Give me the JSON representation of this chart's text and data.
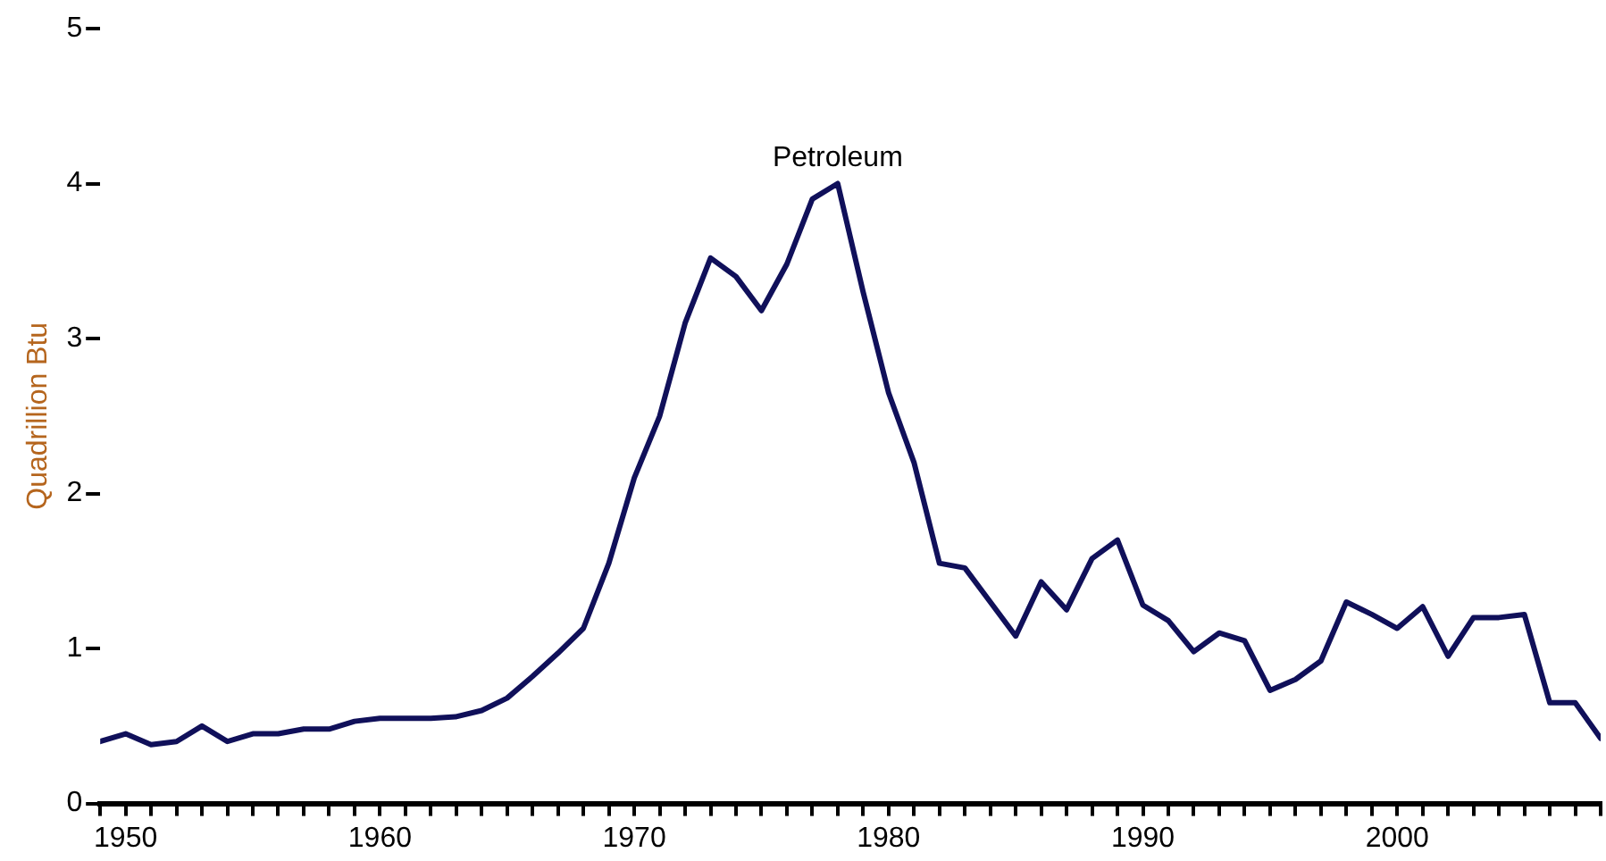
{
  "chart_data": {
    "type": "line",
    "ylabel": "Quadrillion Btu",
    "x": [
      1949,
      1950,
      1951,
      1952,
      1953,
      1954,
      1955,
      1956,
      1957,
      1958,
      1959,
      1960,
      1961,
      1962,
      1963,
      1964,
      1965,
      1966,
      1967,
      1968,
      1969,
      1970,
      1971,
      1972,
      1973,
      1974,
      1975,
      1976,
      1977,
      1978,
      1979,
      1980,
      1981,
      1982,
      1983,
      1984,
      1985,
      1986,
      1987,
      1988,
      1989,
      1990,
      1991,
      1992,
      1993,
      1994,
      1995,
      1996,
      1997,
      1998,
      1999,
      2000,
      2001,
      2002,
      2003,
      2004,
      2005,
      2006,
      2007,
      2008
    ],
    "series": [
      {
        "name": "Petroleum",
        "color": "#10105a",
        "values": [
          0.4,
          0.45,
          0.38,
          0.4,
          0.5,
          0.4,
          0.45,
          0.45,
          0.48,
          0.48,
          0.53,
          0.55,
          0.55,
          0.55,
          0.56,
          0.6,
          0.68,
          0.82,
          0.97,
          1.13,
          1.55,
          2.1,
          2.5,
          3.1,
          3.52,
          3.4,
          3.18,
          3.48,
          3.9,
          4.0,
          3.3,
          2.65,
          2.2,
          1.55,
          1.52,
          1.3,
          1.08,
          1.43,
          1.25,
          1.58,
          1.7,
          1.28,
          1.18,
          0.98,
          1.1,
          1.05,
          0.73,
          0.8,
          0.92,
          1.3,
          1.22,
          1.13,
          1.27,
          0.95,
          1.2,
          1.2,
          1.22,
          0.65,
          0.65,
          0.42
        ]
      }
    ],
    "xlim": [
      1949,
      2008
    ],
    "xticks": [
      {
        "value": 1949,
        "label": null
      },
      1950,
      {
        "value": 1951,
        "label": null
      },
      {
        "value": 1952,
        "label": null
      },
      {
        "value": 1953,
        "label": null
      },
      {
        "value": 1954,
        "label": null
      },
      {
        "value": 1955,
        "label": null
      },
      {
        "value": 1956,
        "label": null
      },
      {
        "value": 1957,
        "label": null
      },
      {
        "value": 1958,
        "label": null
      },
      {
        "value": 1959,
        "label": null
      },
      1960,
      {
        "value": 1961,
        "label": null
      },
      {
        "value": 1962,
        "label": null
      },
      {
        "value": 1963,
        "label": null
      },
      {
        "value": 1964,
        "label": null
      },
      {
        "value": 1965,
        "label": null
      },
      {
        "value": 1966,
        "label": null
      },
      {
        "value": 1967,
        "label": null
      },
      {
        "value": 1968,
        "label": null
      },
      {
        "value": 1969,
        "label": null
      },
      1970,
      {
        "value": 1971,
        "label": null
      },
      {
        "value": 1972,
        "label": null
      },
      {
        "value": 1973,
        "label": null
      },
      {
        "value": 1974,
        "label": null
      },
      {
        "value": 1975,
        "label": null
      },
      {
        "value": 1976,
        "label": null
      },
      {
        "value": 1977,
        "label": null
      },
      {
        "value": 1978,
        "label": null
      },
      {
        "value": 1979,
        "label": null
      },
      1980,
      {
        "value": 1981,
        "label": null
      },
      {
        "value": 1982,
        "label": null
      },
      {
        "value": 1983,
        "label": null
      },
      {
        "value": 1984,
        "label": null
      },
      {
        "value": 1985,
        "label": null
      },
      {
        "value": 1986,
        "label": null
      },
      {
        "value": 1987,
        "label": null
      },
      {
        "value": 1988,
        "label": null
      },
      {
        "value": 1989,
        "label": null
      },
      1990,
      {
        "value": 1991,
        "label": null
      },
      {
        "value": 1992,
        "label": null
      },
      {
        "value": 1993,
        "label": null
      },
      {
        "value": 1994,
        "label": null
      },
      {
        "value": 1995,
        "label": null
      },
      {
        "value": 1996,
        "label": null
      },
      {
        "value": 1997,
        "label": null
      },
      {
        "value": 1998,
        "label": null
      },
      {
        "value": 1999,
        "label": null
      },
      2000,
      {
        "value": 2001,
        "label": null
      },
      {
        "value": 2002,
        "label": null
      },
      {
        "value": 2003,
        "label": null
      },
      {
        "value": 2004,
        "label": null
      },
      {
        "value": 2005,
        "label": null
      },
      {
        "value": 2006,
        "label": null
      },
      {
        "value": 2007,
        "label": null
      },
      {
        "value": 2008,
        "label": null
      }
    ],
    "ylim": [
      0,
      5
    ],
    "yticks": [
      0,
      1,
      2,
      3,
      4,
      5
    ],
    "grid": false,
    "legend": false,
    "marker": "none",
    "line_style": "solid"
  }
}
